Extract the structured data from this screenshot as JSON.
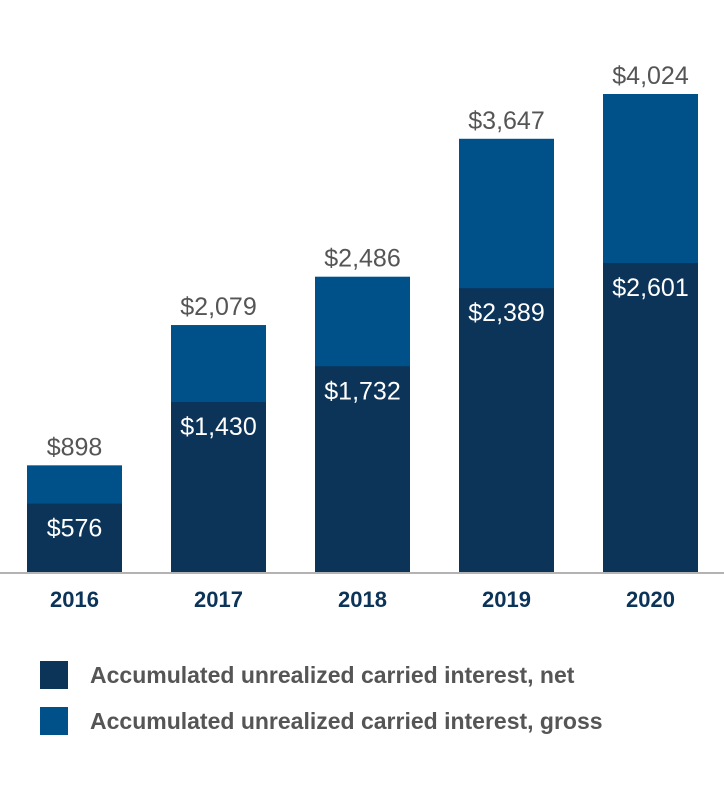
{
  "chart_data": {
    "type": "bar",
    "stacked": "overlay",
    "title": "",
    "xlabel": "",
    "ylabel": "",
    "categories": [
      "2016",
      "2017",
      "2018",
      "2019",
      "2020"
    ],
    "series": [
      {
        "name": "Accumulated unrealized carried interest, net",
        "values": [
          576,
          1430,
          1732,
          2389,
          2601
        ],
        "labels": [
          "$576",
          "$1,430",
          "$1,732",
          "$2,389",
          "$2,601"
        ],
        "color": "#0c3358"
      },
      {
        "name": "Accumulated unrealized carried interest, gross",
        "values": [
          898,
          2079,
          2486,
          3647,
          4024
        ],
        "labels": [
          "$898",
          "$2,079",
          "$2,486",
          "$3,647",
          "$4,024"
        ],
        "color": "#00508a"
      }
    ],
    "ylim": [
      0,
      4024
    ],
    "grid": false,
    "legend": "bottom"
  },
  "colors": {
    "axis": "#b3b3b3",
    "year_label": "#0c3358",
    "gross_label": "#555555",
    "net_label": "#ffffff"
  }
}
